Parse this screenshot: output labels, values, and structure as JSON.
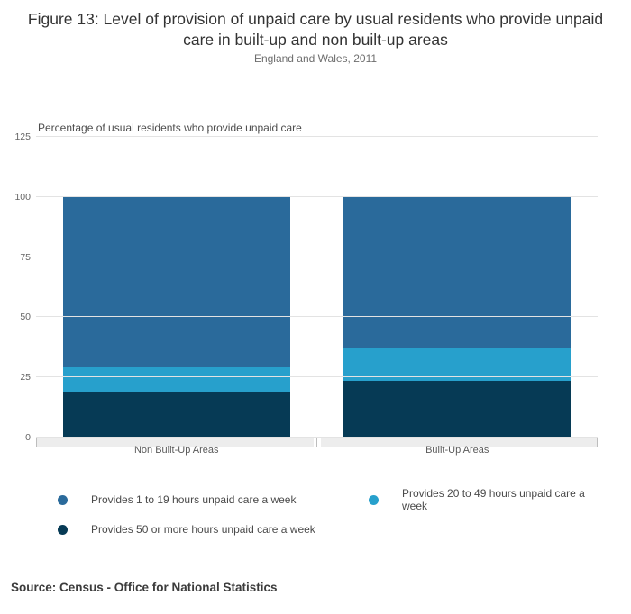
{
  "header": {
    "title": "Figure 13: Level of provision of unpaid care by usual residents who provide unpaid care in built-up and non built-up areas",
    "subtitle": "England and Wales, 2011"
  },
  "chart_data": {
    "type": "bar",
    "stacked": true,
    "title": "Figure 13: Level of provision of unpaid care by usual residents who provide unpaid care in built-up and non built-up areas",
    "subtitle": "England and Wales, 2011",
    "ylabel": "Percentage of usual residents who provide unpaid care",
    "xlabel": "",
    "categories": [
      "Non Built-Up Areas",
      "Built-Up Areas"
    ],
    "series": [
      {
        "name": "Provides 1 to 19 hours unpaid care a week",
        "color": "#2a6a9b",
        "values": [
          70.8,
          62.6
        ]
      },
      {
        "name": "Provides 20 to 49 hours unpaid care a week",
        "color": "#27a0cc",
        "values": [
          10.1,
          13.7
        ]
      },
      {
        "name": "Provides 50 or more hours unpaid care a week",
        "color": "#063a55",
        "values": [
          19.1,
          23.7
        ]
      }
    ],
    "yticks": [
      0,
      25,
      50,
      75,
      100,
      125
    ],
    "ylim": [
      0,
      125
    ],
    "grid": true,
    "legend_position": "bottom"
  },
  "source": "Source: Census - Office for National Statistics"
}
